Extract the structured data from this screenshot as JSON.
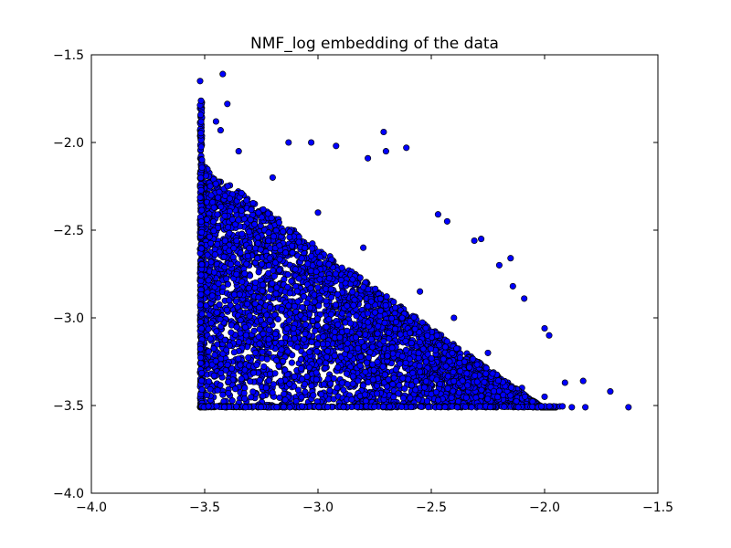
{
  "chart_data": {
    "type": "scatter",
    "title": "NMF_log embedding of the data",
    "xlabel": "",
    "ylabel": "",
    "xlim": [
      -4.0,
      -1.5
    ],
    "ylim": [
      -4.0,
      -1.5
    ],
    "x_ticks": [
      -4.0,
      -3.5,
      -3.0,
      -2.5,
      -2.0,
      -1.5
    ],
    "y_ticks": [
      -4.0,
      -3.5,
      -3.0,
      -2.5,
      -2.0,
      -1.5
    ],
    "x_tick_labels": [
      "−4.0",
      "−3.5",
      "−3.0",
      "−2.5",
      "−2.0",
      "−1.5"
    ],
    "y_tick_labels": [
      "−4.0",
      "−3.5",
      "−3.0",
      "−2.5",
      "−2.0",
      "−1.5"
    ],
    "grid": false,
    "marker_color": "#0000ff",
    "marker_edge_color": "#000000",
    "series": [
      {
        "points_sample": [
          [
            -3.52,
            -1.65
          ],
          [
            -3.42,
            -1.61
          ],
          [
            -3.4,
            -1.78
          ],
          [
            -3.45,
            -1.88
          ],
          [
            -3.43,
            -1.93
          ],
          [
            -2.71,
            -1.94
          ],
          [
            -2.61,
            -2.03
          ],
          [
            -2.7,
            -2.05
          ],
          [
            -2.92,
            -2.02
          ],
          [
            -3.03,
            -2.0
          ],
          [
            -3.13,
            -2.0
          ],
          [
            -2.78,
            -2.09
          ],
          [
            -2.47,
            -2.41
          ],
          [
            -2.43,
            -2.45
          ],
          [
            -2.31,
            -2.56
          ],
          [
            -2.28,
            -2.55
          ],
          [
            -2.2,
            -2.7
          ],
          [
            -2.15,
            -2.66
          ],
          [
            -2.14,
            -2.82
          ],
          [
            -2.09,
            -2.89
          ],
          [
            -2.0,
            -3.06
          ],
          [
            -1.98,
            -3.1
          ],
          [
            -1.91,
            -3.37
          ],
          [
            -1.83,
            -3.36
          ],
          [
            -1.71,
            -3.42
          ],
          [
            -1.63,
            -3.51
          ],
          [
            -1.82,
            -3.51
          ],
          [
            -1.88,
            -3.51
          ],
          [
            -2.0,
            -3.45
          ],
          [
            -2.1,
            -3.4
          ],
          [
            -2.25,
            -3.2
          ],
          [
            -2.4,
            -3.0
          ],
          [
            -2.55,
            -2.85
          ],
          [
            -2.8,
            -2.6
          ],
          [
            -3.0,
            -2.4
          ],
          [
            -3.2,
            -2.2
          ],
          [
            -3.35,
            -2.05
          ],
          [
            -3.5,
            -3.51
          ],
          [
            -3.1,
            -3.51
          ],
          [
            -2.7,
            -3.51
          ],
          [
            -2.3,
            -3.51
          ]
        ]
      }
    ]
  }
}
